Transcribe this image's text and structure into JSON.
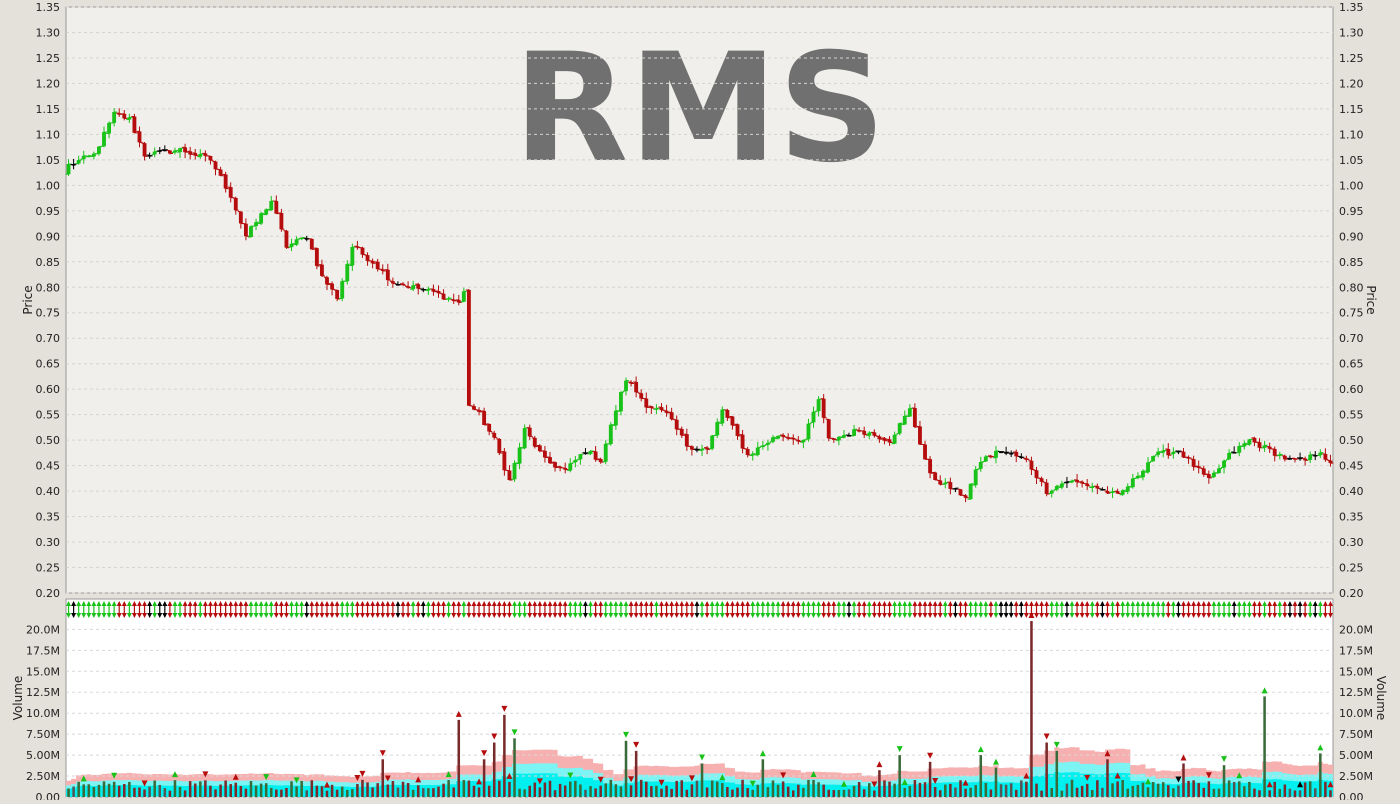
{
  "colors": {
    "up": "#19c219",
    "down": "#b50d0d",
    "neutral": "#000000",
    "watermark": "#707070",
    "price_panel_bg": "#f0efeb",
    "volume_panel_bg": "#ffffff",
    "band_outer": "#f7b0b0",
    "band_mid": "#7df4f4",
    "band_inner": "#00f0f0"
  },
  "chart_data": [
    {
      "type": "candlestick",
      "title": "RMS",
      "ylabel": "Price",
      "ylim": [
        0.2,
        1.35
      ],
      "yticks": [
        "0.20",
        "0.25",
        "0.30",
        "0.35",
        "0.40",
        "0.45",
        "0.50",
        "0.55",
        "0.60",
        "0.65",
        "0.70",
        "0.75",
        "0.80",
        "0.85",
        "0.90",
        "0.95",
        "1.00",
        "1.05",
        "1.10",
        "1.15",
        "1.20",
        "1.25",
        "1.30",
        "1.35"
      ],
      "grid": true,
      "num_bars": 250,
      "anchors": [
        {
          "i": 0,
          "close": 1.04
        },
        {
          "i": 5,
          "close": 1.06
        },
        {
          "i": 9,
          "close": 1.14
        },
        {
          "i": 12,
          "close": 1.13
        },
        {
          "i": 15,
          "close": 1.06
        },
        {
          "i": 22,
          "close": 1.07
        },
        {
          "i": 28,
          "close": 1.05
        },
        {
          "i": 32,
          "close": 0.98
        },
        {
          "i": 35,
          "close": 0.9
        },
        {
          "i": 40,
          "close": 0.97
        },
        {
          "i": 43,
          "close": 0.88
        },
        {
          "i": 47,
          "close": 0.9
        },
        {
          "i": 50,
          "close": 0.82
        },
        {
          "i": 53,
          "close": 0.78
        },
        {
          "i": 56,
          "close": 0.88
        },
        {
          "i": 60,
          "close": 0.85
        },
        {
          "i": 64,
          "close": 0.81
        },
        {
          "i": 68,
          "close": 0.8
        },
        {
          "i": 72,
          "close": 0.79
        },
        {
          "i": 77,
          "close": 0.77
        },
        {
          "i": 78,
          "close": 0.79
        },
        {
          "i": 79,
          "close": 0.57
        },
        {
          "i": 81,
          "close": 0.55
        },
        {
          "i": 84,
          "close": 0.5
        },
        {
          "i": 87,
          "close": 0.42
        },
        {
          "i": 90,
          "close": 0.52
        },
        {
          "i": 94,
          "close": 0.46
        },
        {
          "i": 98,
          "close": 0.44
        },
        {
          "i": 102,
          "close": 0.48
        },
        {
          "i": 105,
          "close": 0.46
        },
        {
          "i": 108,
          "close": 0.56
        },
        {
          "i": 110,
          "close": 0.62
        },
        {
          "i": 114,
          "close": 0.57
        },
        {
          "i": 118,
          "close": 0.55
        },
        {
          "i": 122,
          "close": 0.49
        },
        {
          "i": 126,
          "close": 0.48
        },
        {
          "i": 129,
          "close": 0.56
        },
        {
          "i": 134,
          "close": 0.47
        },
        {
          "i": 140,
          "close": 0.51
        },
        {
          "i": 145,
          "close": 0.5
        },
        {
          "i": 148,
          "close": 0.58
        },
        {
          "i": 150,
          "close": 0.5
        },
        {
          "i": 156,
          "close": 0.52
        },
        {
          "i": 162,
          "close": 0.5
        },
        {
          "i": 166,
          "close": 0.56
        },
        {
          "i": 170,
          "close": 0.43
        },
        {
          "i": 175,
          "close": 0.4
        },
        {
          "i": 177,
          "close": 0.39
        },
        {
          "i": 180,
          "close": 0.46
        },
        {
          "i": 184,
          "close": 0.48
        },
        {
          "i": 189,
          "close": 0.46
        },
        {
          "i": 193,
          "close": 0.4
        },
        {
          "i": 197,
          "close": 0.42
        },
        {
          "i": 202,
          "close": 0.41
        },
        {
          "i": 207,
          "close": 0.39
        },
        {
          "i": 210,
          "close": 0.42
        },
        {
          "i": 214,
          "close": 0.47
        },
        {
          "i": 219,
          "close": 0.48
        },
        {
          "i": 221,
          "close": 0.46
        },
        {
          "i": 225,
          "close": 0.42
        },
        {
          "i": 229,
          "close": 0.47
        },
        {
          "i": 233,
          "close": 0.5
        },
        {
          "i": 237,
          "close": 0.48
        },
        {
          "i": 241,
          "close": 0.46
        },
        {
          "i": 244,
          "close": 0.46
        },
        {
          "i": 247,
          "close": 0.48
        },
        {
          "i": 249,
          "close": 0.45
        }
      ]
    },
    {
      "type": "bar",
      "ylabel": "Volume",
      "ylim": [
        0,
        21000000
      ],
      "yticks": [
        "0.00",
        "2.50M",
        "5.00M",
        "7.50M",
        "10.0M",
        "12.5M",
        "15.0M",
        "17.5M",
        "20.0M"
      ],
      "grid": true,
      "typical_volume": 1500000,
      "spikes": [
        {
          "i": 62,
          "value": 4500000
        },
        {
          "i": 77,
          "value": 9200000
        },
        {
          "i": 82,
          "value": 4500000
        },
        {
          "i": 84,
          "value": 6500000
        },
        {
          "i": 86,
          "value": 9800000
        },
        {
          "i": 88,
          "value": 7000000
        },
        {
          "i": 110,
          "value": 6700000
        },
        {
          "i": 112,
          "value": 5500000
        },
        {
          "i": 125,
          "value": 4000000
        },
        {
          "i": 137,
          "value": 4500000
        },
        {
          "i": 160,
          "value": 3200000
        },
        {
          "i": 164,
          "value": 5000000
        },
        {
          "i": 170,
          "value": 4200000
        },
        {
          "i": 180,
          "value": 5000000
        },
        {
          "i": 183,
          "value": 3500000
        },
        {
          "i": 190,
          "value": 21000000
        },
        {
          "i": 193,
          "value": 6500000
        },
        {
          "i": 195,
          "value": 5500000
        },
        {
          "i": 205,
          "value": 4500000
        },
        {
          "i": 220,
          "value": 4000000
        },
        {
          "i": 228,
          "value": 3800000
        },
        {
          "i": 236,
          "value": 12000000
        },
        {
          "i": 247,
          "value": 5200000
        }
      ]
    }
  ]
}
